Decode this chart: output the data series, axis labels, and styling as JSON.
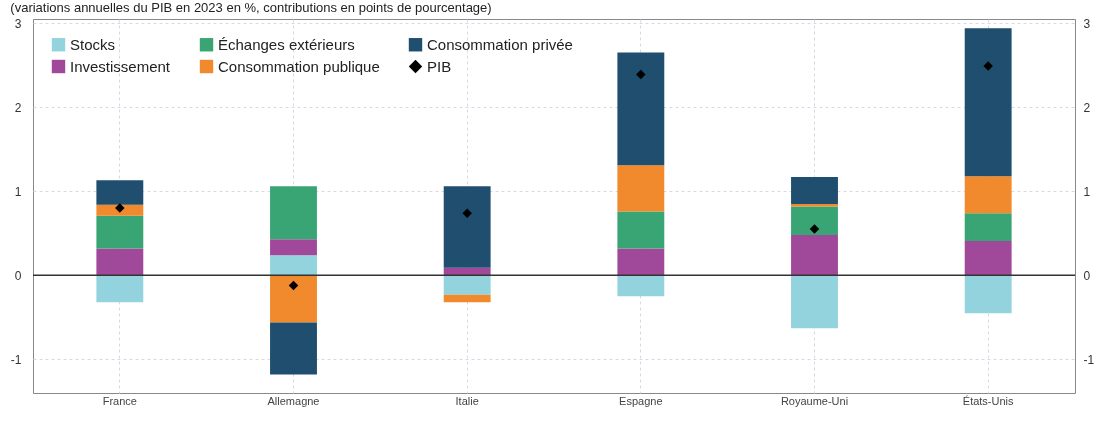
{
  "chart_data": {
    "type": "bar",
    "stacked": true,
    "title": "(variations annuelles du PIB en 2023 en %, contributions en points de pourcentage)",
    "categories": [
      "France",
      "Allemagne",
      "Italie",
      "Espagne",
      "Royaume-Uni",
      "États-Unis"
    ],
    "series": [
      {
        "name": "Stocks",
        "color": "#93d3dd",
        "values": [
          -0.32,
          0.24,
          -0.23,
          -0.25,
          -0.63,
          -0.45
        ]
      },
      {
        "name": "Investissement",
        "color": "#a0489a",
        "values": [
          0.32,
          0.19,
          0.09,
          0.32,
          0.48,
          0.41
        ]
      },
      {
        "name": "Échanges extérieurs",
        "color": "#3aa574",
        "values": [
          0.39,
          0.63,
          0,
          0.44,
          0.34,
          0.33
        ]
      },
      {
        "name": "Consommation publique",
        "color": "#f08a2c",
        "values": [
          0.13,
          -0.56,
          -0.09,
          0.55,
          0.03,
          0.44
        ]
      },
      {
        "name": "Consommation privée",
        "color": "#1f4e6e",
        "values": [
          0.29,
          -0.62,
          0.97,
          1.34,
          0.32,
          1.76
        ]
      },
      {
        "name": "PIB",
        "type": "scatter",
        "color": "#000000",
        "values": [
          0.8,
          -0.12,
          0.74,
          2.39,
          0.55,
          2.49
        ]
      }
    ],
    "marker": "diamond",
    "ylim": [
      -1.4,
      3.05
    ],
    "yticks": [
      -1,
      0,
      1,
      2,
      3
    ],
    "y2lim": [
      -1.4,
      3.05
    ],
    "y2ticks": [
      -1,
      0,
      1,
      2,
      3
    ],
    "ref_lines": [
      {
        "axis": "y",
        "value": 0,
        "color": "#333333"
      }
    ],
    "grid": true,
    "legend": "top left"
  }
}
